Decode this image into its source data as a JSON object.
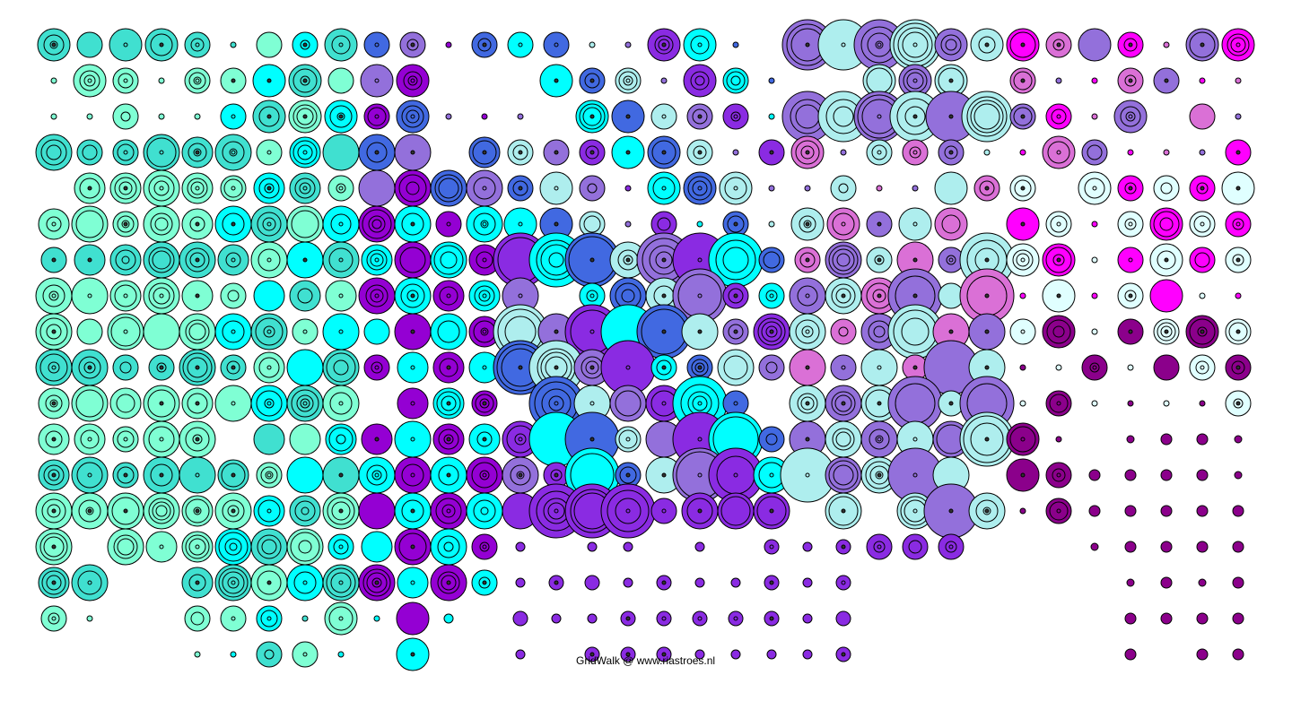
{
  "credit": "GridWalk @ www.riastroes.nl",
  "palette": {
    "aquamarine": "#7fffd4",
    "turquoise": "#40e0d0",
    "cyan": "#00ffff",
    "pale_turquoise": "#aeeeee",
    "light_cyan": "#e0ffff",
    "royal_blue": "#4169e1",
    "medium_purple": "#9370db",
    "slate_blue": "#6a5acd",
    "violet": "#8a2be2",
    "dark_violet": "#9400d3",
    "magenta": "#ff00ff",
    "orchid": "#da70d6",
    "dark_magenta": "#8b008b",
    "purple": "#800080"
  }
}
